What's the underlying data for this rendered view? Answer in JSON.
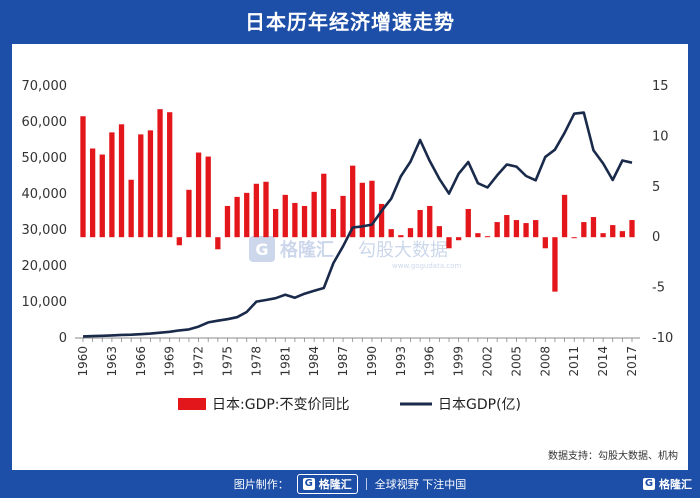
{
  "header": {
    "title": "日本历年经济增速走势"
  },
  "source": "数据支持：勾股大数据、机构",
  "watermark": {
    "brand": "格隆汇",
    "sub": "勾股大数据",
    "url": "www.gogudata.com"
  },
  "footer": {
    "made_by": "图片制作：",
    "brand": "格隆汇",
    "slogan": "全球视野 下注中国"
  },
  "colors": {
    "bar": "#e3161b",
    "line": "#1a2a4a",
    "frame": "#1d4fa8"
  },
  "chart_data": {
    "type": "bar+line",
    "x_tick_labels": [
      "1960",
      "1963",
      "1966",
      "1969",
      "1972",
      "1975",
      "1978",
      "1981",
      "1984",
      "1987",
      "1990",
      "1993",
      "1996",
      "1999",
      "2002",
      "2005",
      "2008",
      "2011",
      "2014",
      "2017"
    ],
    "left_axis": {
      "ticks": [
        "0",
        "10,000",
        "20,000",
        "30,000",
        "40,000",
        "50,000",
        "60,000",
        "70,000"
      ],
      "ylim": [
        0,
        70000
      ]
    },
    "right_axis": {
      "ticks": [
        "-10",
        "-5",
        "0",
        "5",
        "10",
        "15"
      ],
      "ylim": [
        -10,
        15
      ]
    },
    "legend": {
      "bar_label": "日本:GDP:不变价同比",
      "line_label": "日本GDP(亿)",
      "position": "bottom"
    },
    "years": [
      1960,
      1961,
      1962,
      1963,
      1964,
      1965,
      1966,
      1967,
      1968,
      1969,
      1970,
      1971,
      1972,
      1973,
      1974,
      1975,
      1976,
      1977,
      1978,
      1979,
      1980,
      1981,
      1982,
      1983,
      1984,
      1985,
      1986,
      1987,
      1988,
      1989,
      1990,
      1991,
      1992,
      1993,
      1994,
      1995,
      1996,
      1997,
      1998,
      1999,
      2000,
      2001,
      2002,
      2003,
      2004,
      2005,
      2006,
      2007,
      2008,
      2009,
      2010,
      2011,
      2012,
      2013,
      2014,
      2015,
      2016,
      2017
    ],
    "series": [
      {
        "name": "日本:GDP:不变价同比",
        "kind": "bar",
        "axis": "right",
        "values": [
          12.0,
          8.8,
          8.2,
          10.4,
          11.2,
          5.7,
          10.2,
          10.6,
          12.7,
          12.4,
          -0.8,
          4.7,
          8.4,
          8.0,
          -1.2,
          3.1,
          4.0,
          4.4,
          5.3,
          5.5,
          2.8,
          4.2,
          3.4,
          3.1,
          4.5,
          6.3,
          2.8,
          4.1,
          7.1,
          5.4,
          5.6,
          3.3,
          0.8,
          0.2,
          0.9,
          2.7,
          3.1,
          1.1,
          -1.1,
          -0.3,
          2.8,
          0.4,
          0.1,
          1.5,
          2.2,
          1.7,
          1.4,
          1.7,
          -1.1,
          -5.4,
          4.2,
          -0.1,
          1.5,
          2.0,
          0.4,
          1.2,
          0.6,
          1.7
        ]
      },
      {
        "name": "日本GDP(亿)",
        "kind": "line",
        "axis": "left",
        "values": [
          440,
          530,
          610,
          720,
          850,
          910,
          1050,
          1230,
          1460,
          1720,
          2120,
          2400,
          3180,
          4320,
          4810,
          5210,
          5780,
          7210,
          10100,
          10550,
          11050,
          12020,
          11200,
          12300,
          13100,
          13900,
          20800,
          25500,
          30700,
          31000,
          31500,
          35300,
          38700,
          44900,
          49000,
          55000,
          49200,
          44200,
          40100,
          45600,
          48900,
          43000,
          41800,
          45200,
          48200,
          47600,
          45000,
          43800,
          50300,
          52300,
          57000,
          62300,
          62600,
          52100,
          48500,
          43900,
          49300,
          48700
        ]
      }
    ]
  }
}
